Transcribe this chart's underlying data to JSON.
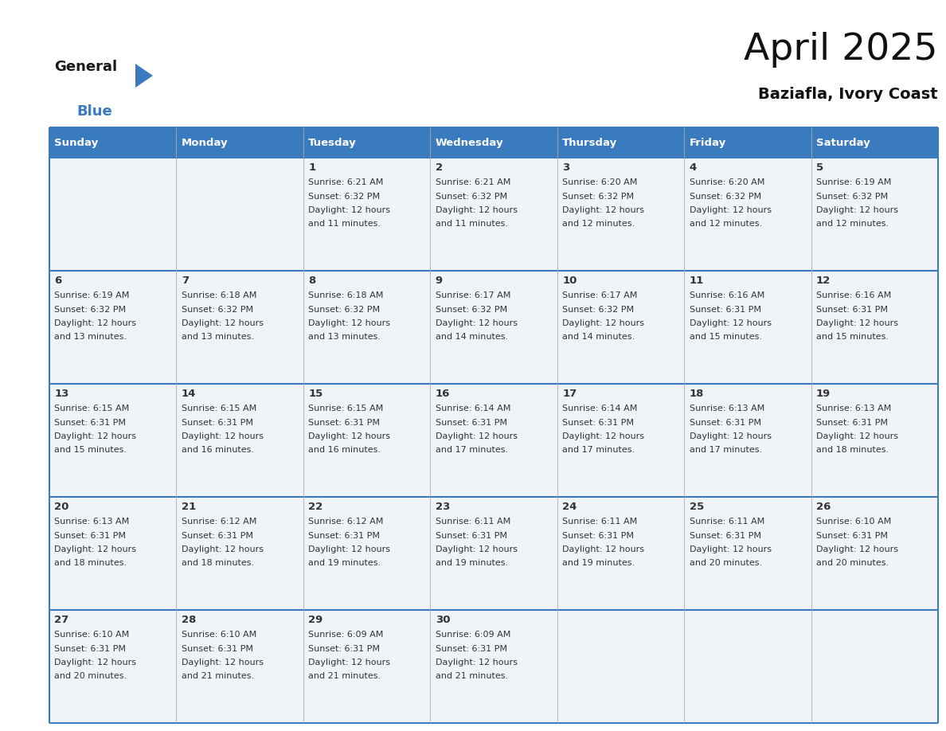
{
  "title": "April 2025",
  "subtitle": "Baziafla, Ivory Coast",
  "header_bg": "#3a7bbf",
  "header_text_color": "#ffffff",
  "cell_bg": "#f0f4f8",
  "border_color": "#3a7bbf",
  "row_separator_color": "#3a7bbf",
  "col_separator_color": "#bbbbbb",
  "text_color": "#333333",
  "days_of_week": [
    "Sunday",
    "Monday",
    "Tuesday",
    "Wednesday",
    "Thursday",
    "Friday",
    "Saturday"
  ],
  "weeks": [
    [
      {
        "day": "",
        "sunrise": "",
        "sunset": "",
        "daylight": ""
      },
      {
        "day": "",
        "sunrise": "",
        "sunset": "",
        "daylight": ""
      },
      {
        "day": "1",
        "sunrise": "6:21 AM",
        "sunset": "6:32 PM",
        "daylight": "12 hours and 11 minutes."
      },
      {
        "day": "2",
        "sunrise": "6:21 AM",
        "sunset": "6:32 PM",
        "daylight": "12 hours and 11 minutes."
      },
      {
        "day": "3",
        "sunrise": "6:20 AM",
        "sunset": "6:32 PM",
        "daylight": "12 hours and 12 minutes."
      },
      {
        "day": "4",
        "sunrise": "6:20 AM",
        "sunset": "6:32 PM",
        "daylight": "12 hours and 12 minutes."
      },
      {
        "day": "5",
        "sunrise": "6:19 AM",
        "sunset": "6:32 PM",
        "daylight": "12 hours and 12 minutes."
      }
    ],
    [
      {
        "day": "6",
        "sunrise": "6:19 AM",
        "sunset": "6:32 PM",
        "daylight": "12 hours and 13 minutes."
      },
      {
        "day": "7",
        "sunrise": "6:18 AM",
        "sunset": "6:32 PM",
        "daylight": "12 hours and 13 minutes."
      },
      {
        "day": "8",
        "sunrise": "6:18 AM",
        "sunset": "6:32 PM",
        "daylight": "12 hours and 13 minutes."
      },
      {
        "day": "9",
        "sunrise": "6:17 AM",
        "sunset": "6:32 PM",
        "daylight": "12 hours and 14 minutes."
      },
      {
        "day": "10",
        "sunrise": "6:17 AM",
        "sunset": "6:32 PM",
        "daylight": "12 hours and 14 minutes."
      },
      {
        "day": "11",
        "sunrise": "6:16 AM",
        "sunset": "6:31 PM",
        "daylight": "12 hours and 15 minutes."
      },
      {
        "day": "12",
        "sunrise": "6:16 AM",
        "sunset": "6:31 PM",
        "daylight": "12 hours and 15 minutes."
      }
    ],
    [
      {
        "day": "13",
        "sunrise": "6:15 AM",
        "sunset": "6:31 PM",
        "daylight": "12 hours and 15 minutes."
      },
      {
        "day": "14",
        "sunrise": "6:15 AM",
        "sunset": "6:31 PM",
        "daylight": "12 hours and 16 minutes."
      },
      {
        "day": "15",
        "sunrise": "6:15 AM",
        "sunset": "6:31 PM",
        "daylight": "12 hours and 16 minutes."
      },
      {
        "day": "16",
        "sunrise": "6:14 AM",
        "sunset": "6:31 PM",
        "daylight": "12 hours and 17 minutes."
      },
      {
        "day": "17",
        "sunrise": "6:14 AM",
        "sunset": "6:31 PM",
        "daylight": "12 hours and 17 minutes."
      },
      {
        "day": "18",
        "sunrise": "6:13 AM",
        "sunset": "6:31 PM",
        "daylight": "12 hours and 17 minutes."
      },
      {
        "day": "19",
        "sunrise": "6:13 AM",
        "sunset": "6:31 PM",
        "daylight": "12 hours and 18 minutes."
      }
    ],
    [
      {
        "day": "20",
        "sunrise": "6:13 AM",
        "sunset": "6:31 PM",
        "daylight": "12 hours and 18 minutes."
      },
      {
        "day": "21",
        "sunrise": "6:12 AM",
        "sunset": "6:31 PM",
        "daylight": "12 hours and 18 minutes."
      },
      {
        "day": "22",
        "sunrise": "6:12 AM",
        "sunset": "6:31 PM",
        "daylight": "12 hours and 19 minutes."
      },
      {
        "day": "23",
        "sunrise": "6:11 AM",
        "sunset": "6:31 PM",
        "daylight": "12 hours and 19 minutes."
      },
      {
        "day": "24",
        "sunrise": "6:11 AM",
        "sunset": "6:31 PM",
        "daylight": "12 hours and 19 minutes."
      },
      {
        "day": "25",
        "sunrise": "6:11 AM",
        "sunset": "6:31 PM",
        "daylight": "12 hours and 20 minutes."
      },
      {
        "day": "26",
        "sunrise": "6:10 AM",
        "sunset": "6:31 PM",
        "daylight": "12 hours and 20 minutes."
      }
    ],
    [
      {
        "day": "27",
        "sunrise": "6:10 AM",
        "sunset": "6:31 PM",
        "daylight": "12 hours and 20 minutes."
      },
      {
        "day": "28",
        "sunrise": "6:10 AM",
        "sunset": "6:31 PM",
        "daylight": "12 hours and 21 minutes."
      },
      {
        "day": "29",
        "sunrise": "6:09 AM",
        "sunset": "6:31 PM",
        "daylight": "12 hours and 21 minutes."
      },
      {
        "day": "30",
        "sunrise": "6:09 AM",
        "sunset": "6:31 PM",
        "daylight": "12 hours and 21 minutes."
      },
      {
        "day": "",
        "sunrise": "",
        "sunset": "",
        "daylight": ""
      },
      {
        "day": "",
        "sunrise": "",
        "sunset": "",
        "daylight": ""
      },
      {
        "day": "",
        "sunrise": "",
        "sunset": "",
        "daylight": ""
      }
    ]
  ],
  "logo_general_color": "#1a1a1a",
  "logo_blue_color": "#3a7bbf",
  "logo_triangle_color": "#3a7bbf"
}
